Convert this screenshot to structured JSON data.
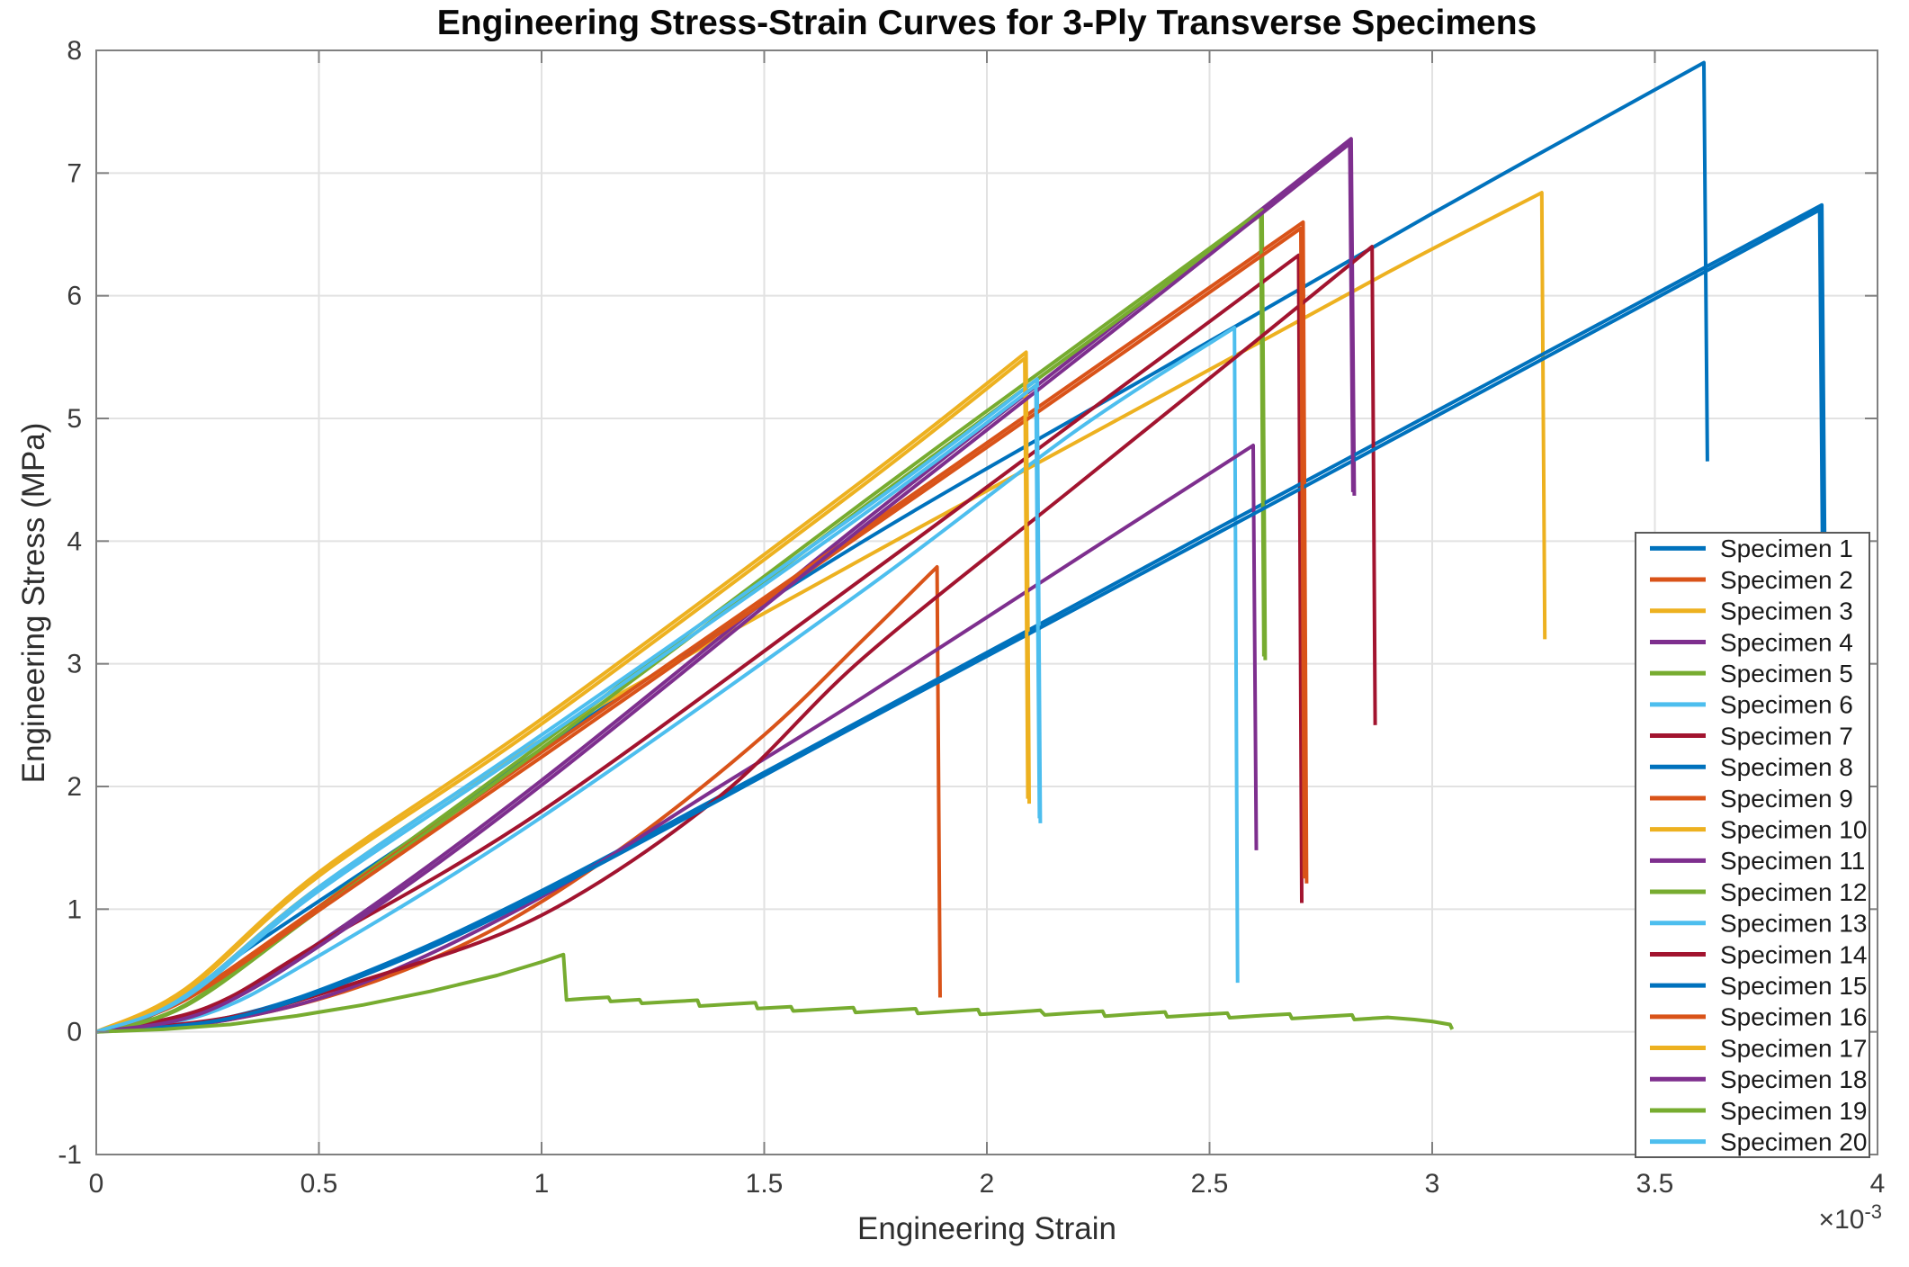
{
  "chart_data": {
    "type": "line",
    "title": "Engineering Stress-Strain Curves for 3-Ply Transverse Specimens",
    "xlabel": "Engineering Strain",
    "ylabel": "Engineering Stress (MPa)",
    "x_multiplier": {
      "base": "×10",
      "exp": "-3"
    },
    "note_units": "series point x-values are strain in units of 1e-3; y-values are stress in MPa",
    "xlim": [
      0,
      4
    ],
    "ylim": [
      -1,
      8
    ],
    "x_ticks": [
      "0",
      "0.5",
      "1",
      "1.5",
      "2",
      "2.5",
      "3",
      "3.5",
      "4"
    ],
    "y_ticks": [
      "-1",
      "0",
      "1",
      "2",
      "3",
      "4",
      "5",
      "6",
      "7",
      "8"
    ],
    "grid": true,
    "legend_position": "inside-right",
    "series": [
      {
        "name": "Specimen 1",
        "color": "#0072BD",
        "peak": [
          3.61,
          7.9
        ],
        "post_failure_stress_MPa": 4.65,
        "points": [
          [
            0,
            0
          ],
          [
            0.15,
            0.18
          ],
          [
            0.35,
            0.7
          ],
          [
            0.7,
            1.55
          ],
          [
            1.1,
            2.55
          ],
          [
            1.723,
            4.0
          ],
          [
            2.4,
            5.42
          ],
          [
            3.0,
            6.67
          ],
          [
            3.61,
            7.9
          ],
          [
            3.618,
            4.65
          ]
        ]
      },
      {
        "name": "Specimen 2",
        "color": "#D95319",
        "peak": [
          1.888,
          3.79
        ],
        "post_failure_stress_MPa": 0.28,
        "points": [
          [
            0,
            0
          ],
          [
            0.3,
            0.1
          ],
          [
            0.6,
            0.38
          ],
          [
            0.9,
            0.85
          ],
          [
            1.2,
            1.55
          ],
          [
            1.5,
            2.42
          ],
          [
            1.723,
            3.2
          ],
          [
            1.888,
            3.79
          ],
          [
            1.895,
            0.28
          ]
        ]
      },
      {
        "name": "Specimen 3",
        "color": "#EDB120",
        "peak": [
          3.246,
          6.84
        ],
        "post_failure_stress_MPa": 3.2,
        "points": [
          [
            0,
            0
          ],
          [
            0.2,
            0.3
          ],
          [
            0.5,
            1.18
          ],
          [
            1.0,
            2.38
          ],
          [
            1.723,
            3.86
          ],
          [
            2.4,
            5.2
          ],
          [
            2.9,
            6.19
          ],
          [
            3.246,
            6.84
          ],
          [
            3.253,
            3.2
          ]
        ]
      },
      {
        "name": "Specimen 4",
        "color": "#7E2F8E",
        "peak": [
          2.818,
          7.28
        ],
        "post_failure_stress_MPa": 4.37,
        "points": [
          [
            0,
            0
          ],
          [
            0.25,
            0.18
          ],
          [
            0.55,
            0.85
          ],
          [
            1.0,
            2.05
          ],
          [
            1.723,
            4.16
          ],
          [
            2.3,
            5.8
          ],
          [
            2.818,
            7.28
          ],
          [
            2.825,
            4.37
          ]
        ]
      },
      {
        "name": "Specimen 5",
        "color": "#77AC30",
        "peak": [
          2.618,
          6.7
        ],
        "post_failure_stress_MPa": 3.03,
        "points": [
          [
            0,
            0
          ],
          [
            0.2,
            0.22
          ],
          [
            0.5,
            1.02
          ],
          [
            1.0,
            2.35
          ],
          [
            1.723,
            4.32
          ],
          [
            2.2,
            5.59
          ],
          [
            2.618,
            6.7
          ],
          [
            2.625,
            3.03
          ]
        ]
      },
      {
        "name": "Specimen 6",
        "color": "#4DBEEE",
        "peak": [
          2.556,
          5.74
        ],
        "post_failure_stress_MPa": 0.4,
        "points": [
          [
            0,
            0
          ],
          [
            0.25,
            0.15
          ],
          [
            0.5,
            0.62
          ],
          [
            1.0,
            1.75
          ],
          [
            1.723,
            3.6
          ],
          [
            2.2,
            4.9
          ],
          [
            2.556,
            5.74
          ],
          [
            2.563,
            0.4
          ]
        ]
      },
      {
        "name": "Specimen 7",
        "color": "#A2142F",
        "peak": [
          2.7,
          6.33
        ],
        "post_failure_stress_MPa": 1.05,
        "points": [
          [
            0,
            0
          ],
          [
            0.25,
            0.2
          ],
          [
            0.5,
            0.72
          ],
          [
            1.0,
            1.8
          ],
          [
            1.723,
            3.7
          ],
          [
            2.2,
            4.98
          ],
          [
            2.7,
            6.33
          ],
          [
            2.707,
            1.05
          ]
        ]
      },
      {
        "name": "Specimen 8",
        "color": "#0072BD",
        "peak": [
          3.875,
          6.74
        ],
        "post_failure_stress_MPa": 3.25,
        "points": [
          [
            0,
            0
          ],
          [
            0.3,
            0.12
          ],
          [
            0.6,
            0.48
          ],
          [
            1.0,
            1.15
          ],
          [
            1.723,
            2.55
          ],
          [
            2.5,
            4.07
          ],
          [
            3.2,
            5.43
          ],
          [
            3.875,
            6.74
          ],
          [
            3.883,
            3.25
          ]
        ]
      },
      {
        "name": "Specimen 9",
        "color": "#D95319",
        "peak": [
          2.71,
          6.6
        ],
        "post_failure_stress_MPa": 1.21,
        "points": [
          [
            0,
            0
          ],
          [
            0.2,
            0.28
          ],
          [
            0.5,
            1.02
          ],
          [
            1.0,
            2.28
          ],
          [
            1.723,
            4.1
          ],
          [
            2.3,
            5.56
          ],
          [
            2.71,
            6.6
          ],
          [
            2.718,
            1.21
          ]
        ]
      },
      {
        "name": "Specimen 10",
        "color": "#EDB120",
        "peak": [
          2.088,
          5.54
        ],
        "post_failure_stress_MPa": 1.86,
        "points": [
          [
            0,
            0
          ],
          [
            0.2,
            0.35
          ],
          [
            0.5,
            1.3
          ],
          [
            1.0,
            2.55
          ],
          [
            1.723,
            4.5
          ],
          [
            2.088,
            5.54
          ],
          [
            2.095,
            1.86
          ]
        ]
      },
      {
        "name": "Specimen 11",
        "color": "#7E2F8E",
        "peak": [
          2.598,
          4.78
        ],
        "post_failure_stress_MPa": 1.48,
        "points": [
          [
            0,
            0
          ],
          [
            0.3,
            0.1
          ],
          [
            0.6,
            0.4
          ],
          [
            1.0,
            1.1
          ],
          [
            1.4,
            2.0
          ],
          [
            1.723,
            2.73
          ],
          [
            2.2,
            3.85
          ],
          [
            2.598,
            4.78
          ],
          [
            2.605,
            1.48
          ]
        ]
      },
      {
        "name": "Specimen 12",
        "color": "#77AC30",
        "peak": [
          2.615,
          6.66
        ],
        "post_failure_stress_MPa": 3.06,
        "points": [
          [
            0,
            0
          ],
          [
            0.2,
            0.21
          ],
          [
            0.5,
            0.99
          ],
          [
            1.0,
            2.31
          ],
          [
            1.72,
            4.27
          ],
          [
            2.2,
            5.55
          ],
          [
            2.615,
            6.66
          ],
          [
            2.622,
            3.06
          ]
        ]
      },
      {
        "name": "Specimen 13",
        "color": "#4DBEEE",
        "peak": [
          2.113,
          5.32
        ],
        "post_failure_stress_MPa": 1.7,
        "points": [
          [
            0,
            0
          ],
          [
            0.2,
            0.3
          ],
          [
            0.5,
            1.18
          ],
          [
            1.0,
            2.42
          ],
          [
            1.723,
            4.26
          ],
          [
            2.113,
            5.32
          ],
          [
            2.12,
            1.7
          ]
        ]
      },
      {
        "name": "Specimen 14",
        "color": "#A2142F",
        "peak": [
          2.865,
          6.4
        ],
        "post_failure_stress_MPa": 2.5,
        "points": [
          [
            0,
            0
          ],
          [
            0.3,
            0.12
          ],
          [
            0.6,
            0.42
          ],
          [
            1.0,
            0.95
          ],
          [
            1.4,
            1.92
          ],
          [
            1.723,
            3.05
          ],
          [
            2.2,
            4.45
          ],
          [
            2.6,
            5.62
          ],
          [
            2.865,
            6.4
          ],
          [
            2.872,
            2.5
          ]
        ]
      },
      {
        "name": "Specimen 15",
        "color": "#0072BD",
        "peak": [
          3.87,
          6.7
        ],
        "post_failure_stress_MPa": 3.3,
        "points": [
          [
            0,
            0
          ],
          [
            0.3,
            0.11
          ],
          [
            0.6,
            0.46
          ],
          [
            1.0,
            1.12
          ],
          [
            1.72,
            2.52
          ],
          [
            2.5,
            4.03
          ],
          [
            3.2,
            5.39
          ],
          [
            3.87,
            6.7
          ],
          [
            3.878,
            3.3
          ]
        ]
      },
      {
        "name": "Specimen 16",
        "color": "#D95319",
        "peak": [
          2.705,
          6.55
        ],
        "post_failure_stress_MPa": 1.25,
        "points": [
          [
            0,
            0
          ],
          [
            0.2,
            0.26
          ],
          [
            0.5,
            0.99
          ],
          [
            1.0,
            2.24
          ],
          [
            1.72,
            4.06
          ],
          [
            2.3,
            5.52
          ],
          [
            2.705,
            6.55
          ],
          [
            2.713,
            1.25
          ]
        ]
      },
      {
        "name": "Specimen 17",
        "color": "#EDB120",
        "peak": [
          2.085,
          5.49
        ],
        "post_failure_stress_MPa": 1.9,
        "points": [
          [
            0,
            0
          ],
          [
            0.2,
            0.33
          ],
          [
            0.5,
            1.27
          ],
          [
            1.0,
            2.51
          ],
          [
            1.72,
            4.45
          ],
          [
            2.085,
            5.49
          ],
          [
            2.092,
            1.9
          ]
        ]
      },
      {
        "name": "Specimen 18",
        "color": "#7E2F8E",
        "peak": [
          2.815,
          7.24
        ],
        "post_failure_stress_MPa": 4.4,
        "points": [
          [
            0,
            0
          ],
          [
            0.25,
            0.17
          ],
          [
            0.55,
            0.82
          ],
          [
            1.0,
            2.01
          ],
          [
            1.72,
            4.11
          ],
          [
            2.3,
            5.76
          ],
          [
            2.815,
            7.24
          ],
          [
            2.822,
            4.4
          ]
        ]
      },
      {
        "name": "Specimen 19",
        "color": "#77AC30",
        "peak": [
          1.049,
          0.63
        ],
        "post_failure_stress_MPa": 0.26,
        "behavior": "progressive failure with serrated low-stress plateau",
        "raw": true,
        "points": [
          [
            0,
            0
          ],
          [
            0.15,
            0.02
          ],
          [
            0.3,
            0.06
          ],
          [
            0.45,
            0.13
          ],
          [
            0.6,
            0.22
          ],
          [
            0.75,
            0.33
          ],
          [
            0.9,
            0.46
          ],
          [
            1.0,
            0.57
          ],
          [
            1.049,
            0.63
          ],
          [
            1.056,
            0.26
          ],
          [
            1.1,
            0.272
          ],
          [
            1.15,
            0.282
          ],
          [
            1.155,
            0.248
          ],
          [
            1.22,
            0.262
          ],
          [
            1.225,
            0.232
          ],
          [
            1.3,
            0.248
          ],
          [
            1.35,
            0.258
          ],
          [
            1.355,
            0.21
          ],
          [
            1.42,
            0.225
          ],
          [
            1.48,
            0.238
          ],
          [
            1.485,
            0.19
          ],
          [
            1.56,
            0.205
          ],
          [
            1.565,
            0.17
          ],
          [
            1.64,
            0.185
          ],
          [
            1.7,
            0.198
          ],
          [
            1.705,
            0.158
          ],
          [
            1.78,
            0.175
          ],
          [
            1.84,
            0.188
          ],
          [
            1.845,
            0.15
          ],
          [
            1.92,
            0.168
          ],
          [
            1.98,
            0.182
          ],
          [
            1.985,
            0.142
          ],
          [
            2.06,
            0.16
          ],
          [
            2.12,
            0.175
          ],
          [
            2.13,
            0.138
          ],
          [
            2.2,
            0.155
          ],
          [
            2.26,
            0.168
          ],
          [
            2.265,
            0.128
          ],
          [
            2.34,
            0.148
          ],
          [
            2.4,
            0.162
          ],
          [
            2.405,
            0.122
          ],
          [
            2.48,
            0.14
          ],
          [
            2.54,
            0.152
          ],
          [
            2.545,
            0.115
          ],
          [
            2.62,
            0.133
          ],
          [
            2.68,
            0.145
          ],
          [
            2.685,
            0.108
          ],
          [
            2.76,
            0.125
          ],
          [
            2.82,
            0.138
          ],
          [
            2.825,
            0.1
          ],
          [
            2.9,
            0.118
          ],
          [
            2.96,
            0.1
          ],
          [
            3.0,
            0.085
          ],
          [
            3.04,
            0.06
          ],
          [
            3.045,
            0.02
          ]
        ]
      },
      {
        "name": "Specimen 20",
        "color": "#4DBEEE",
        "peak": [
          2.11,
          5.27
        ],
        "post_failure_stress_MPa": 1.74,
        "points": [
          [
            0,
            0
          ],
          [
            0.2,
            0.28
          ],
          [
            0.5,
            1.15
          ],
          [
            1.0,
            2.38
          ],
          [
            1.72,
            4.21
          ],
          [
            2.11,
            5.27
          ],
          [
            2.118,
            1.74
          ]
        ]
      }
    ],
    "style": {
      "background": "#ffffff",
      "grid_color": "#e2e2e2",
      "axis_color": "#808080",
      "tick_label_color": "#3a3a3a",
      "legend_border_color": "#5a5a5a",
      "legend_background": "#ffffff"
    }
  }
}
